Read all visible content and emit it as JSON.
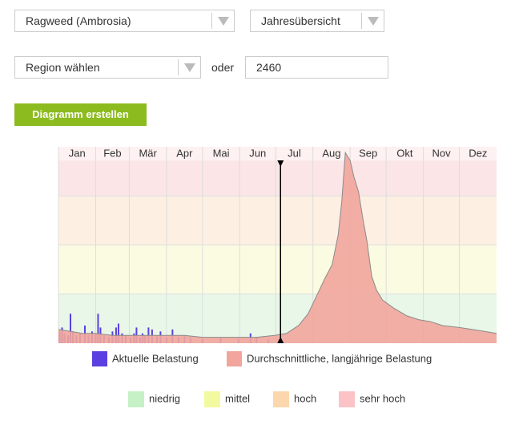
{
  "form": {
    "species": "Ragweed (Ambrosia)",
    "view": "Jahresübersicht",
    "region": "Region wählen",
    "or": "oder",
    "postcode": "2460",
    "button": "Diagramm erstellen"
  },
  "chart_data": {
    "type": "area",
    "xlim": [
      0,
      365
    ],
    "ylim": [
      0,
      100
    ],
    "xticks": [
      {
        "value": 0,
        "label": "Jan"
      },
      {
        "value": 31,
        "label": "Feb"
      },
      {
        "value": 59,
        "label": "Mär"
      },
      {
        "value": 90,
        "label": "Apr"
      },
      {
        "value": 120,
        "label": "Mai"
      },
      {
        "value": 151,
        "label": "Jun"
      },
      {
        "value": 181,
        "label": "Jul"
      },
      {
        "value": 212,
        "label": "Aug"
      },
      {
        "value": 243,
        "label": "Sep"
      },
      {
        "value": 273,
        "label": "Okt"
      },
      {
        "value": 304,
        "label": "Nov"
      },
      {
        "value": 334,
        "label": "Dez"
      }
    ],
    "grid": true,
    "marker_x": 185,
    "levels": [
      {
        "name": "niedrig",
        "from": 0,
        "to": 25,
        "band_color": "#e8f7e8",
        "color": "#c6f1c6"
      },
      {
        "name": "mittel",
        "from": 25,
        "to": 50,
        "band_color": "#fbfbe2",
        "color": "#f3f99e"
      },
      {
        "name": "hoch",
        "from": 50,
        "to": 75,
        "band_color": "#fdf0e3",
        "color": "#fcd6ad"
      },
      {
        "name": "sehr hoch",
        "from": 75,
        "to": 93,
        "band_color": "#fbe5e6",
        "color": "#fbc3c6"
      }
    ],
    "series": [
      {
        "name": "Aktuelle Belastung",
        "type": "bar",
        "color": "#5b3fe0",
        "x": [
          1,
          3,
          5,
          8,
          10,
          12,
          15,
          18,
          22,
          25,
          28,
          31,
          33,
          35,
          38,
          42,
          45,
          48,
          50,
          53,
          56,
          60,
          63,
          65,
          68,
          70,
          72,
          75,
          78,
          82,
          85,
          90,
          95,
          100,
          105,
          110,
          120,
          135,
          150,
          160,
          165,
          175
        ],
        "values": [
          6,
          8,
          5,
          4,
          15,
          6,
          4,
          5,
          9,
          4,
          6,
          5,
          15,
          8,
          4,
          3,
          6,
          8,
          10,
          5,
          4,
          3,
          5,
          8,
          3,
          5,
          4,
          8,
          7,
          4,
          6,
          3,
          7,
          3,
          4,
          3,
          2,
          3,
          2,
          5,
          3,
          2
        ]
      },
      {
        "name": "Durchschnittliche, langjährige Belastung",
        "type": "area",
        "color": "#f1a59c",
        "line_color": "#8a8a8a",
        "x": [
          0,
          10,
          20,
          31,
          45,
          59,
          75,
          90,
          105,
          120,
          135,
          151,
          165,
          180,
          190,
          200,
          208,
          215,
          222,
          228,
          233,
          236,
          239,
          241,
          243,
          246,
          250,
          254,
          257,
          261,
          265,
          270,
          279,
          290,
          300,
          310,
          320,
          334,
          345,
          355,
          365
        ],
        "values": [
          7,
          6,
          5,
          5,
          4,
          4,
          4,
          4,
          4,
          3,
          3,
          3,
          3,
          4,
          5,
          9,
          15,
          24,
          33,
          40,
          55,
          72,
          97,
          95,
          93,
          85,
          77,
          62,
          52,
          34,
          27,
          22,
          18,
          14,
          12,
          11,
          9,
          8,
          7,
          6,
          5
        ]
      }
    ]
  }
}
